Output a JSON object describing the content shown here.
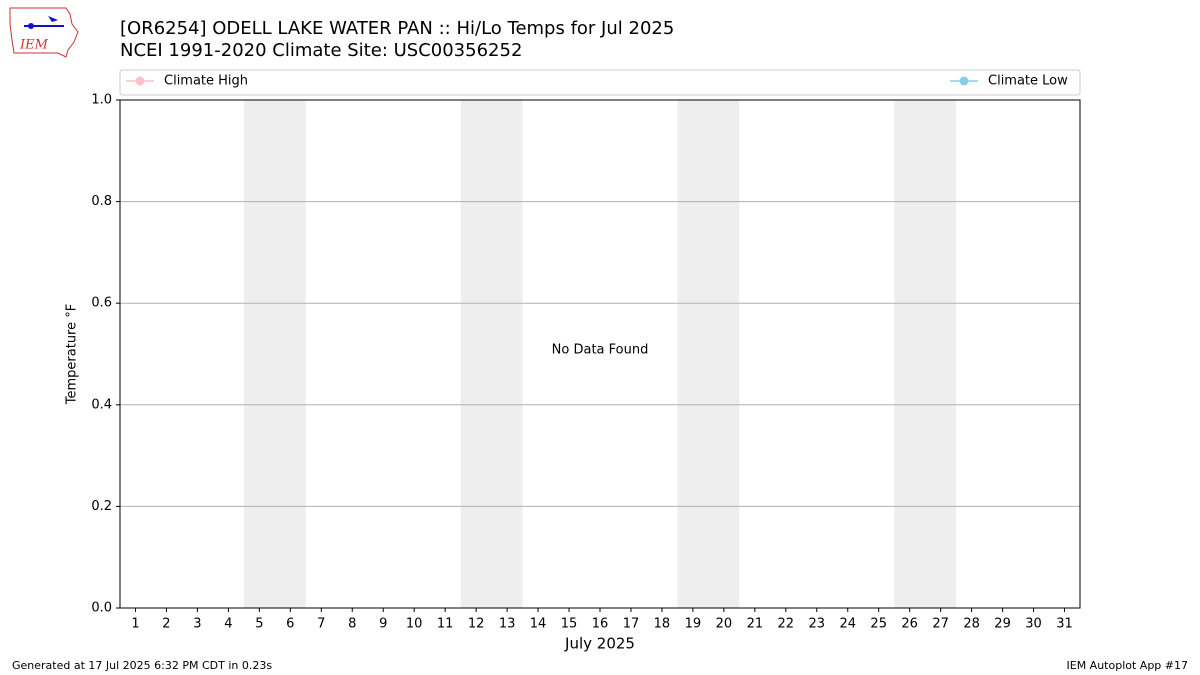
{
  "logo": "IEM",
  "chart_data": {
    "type": "line",
    "title": "[OR6254] ODELL LAKE WATER PAN :: Hi/Lo Temps for Jul 2025",
    "subtitle": "NCEI 1991-2020 Climate Site: USC00356252",
    "x_label": "July 2025",
    "y_label": "Temperature °F",
    "annotation": "No Data Found",
    "x": [
      1,
      2,
      3,
      4,
      5,
      6,
      7,
      8,
      9,
      10,
      11,
      12,
      13,
      14,
      15,
      16,
      17,
      18,
      19,
      20,
      21,
      22,
      23,
      24,
      25,
      26,
      27,
      28,
      29,
      30,
      31
    ],
    "series": [
      {
        "name": "Climate High",
        "color": "#ffc0cb",
        "values": [
          null,
          null,
          null,
          null,
          null,
          null,
          null,
          null,
          null,
          null,
          null,
          null,
          null,
          null,
          null,
          null,
          null,
          null,
          null,
          null,
          null,
          null,
          null,
          null,
          null,
          null,
          null,
          null,
          null,
          null,
          null
        ]
      },
      {
        "name": "Climate Low",
        "color": "#87ceeb",
        "values": [
          null,
          null,
          null,
          null,
          null,
          null,
          null,
          null,
          null,
          null,
          null,
          null,
          null,
          null,
          null,
          null,
          null,
          null,
          null,
          null,
          null,
          null,
          null,
          null,
          null,
          null,
          null,
          null,
          null,
          null,
          null
        ]
      }
    ],
    "xlim": [
      0.5,
      31.5
    ],
    "xticks": [
      1,
      2,
      3,
      4,
      5,
      6,
      7,
      8,
      9,
      10,
      11,
      12,
      13,
      14,
      15,
      16,
      17,
      18,
      19,
      20,
      21,
      22,
      23,
      24,
      25,
      26,
      27,
      28,
      29,
      30,
      31
    ],
    "ylim": [
      0,
      1
    ],
    "yticks": [
      {
        "value": 0,
        "label": "0.0"
      },
      0.2,
      0.4,
      0.6,
      0.8,
      {
        "value": 1,
        "label": "1.0"
      }
    ],
    "grid": "y",
    "weekend_bands": [
      [
        4.5,
        6.5
      ],
      [
        11.5,
        13.5
      ],
      [
        18.5,
        20.5
      ],
      [
        25.5,
        27.5
      ]
    ],
    "band_color": "#eeeeee",
    "legend": "top",
    "footer_left": "Generated at 17 Jul 2025 6:32 PM CDT in 0.23s",
    "footer_right": "IEM Autoplot App #17"
  }
}
